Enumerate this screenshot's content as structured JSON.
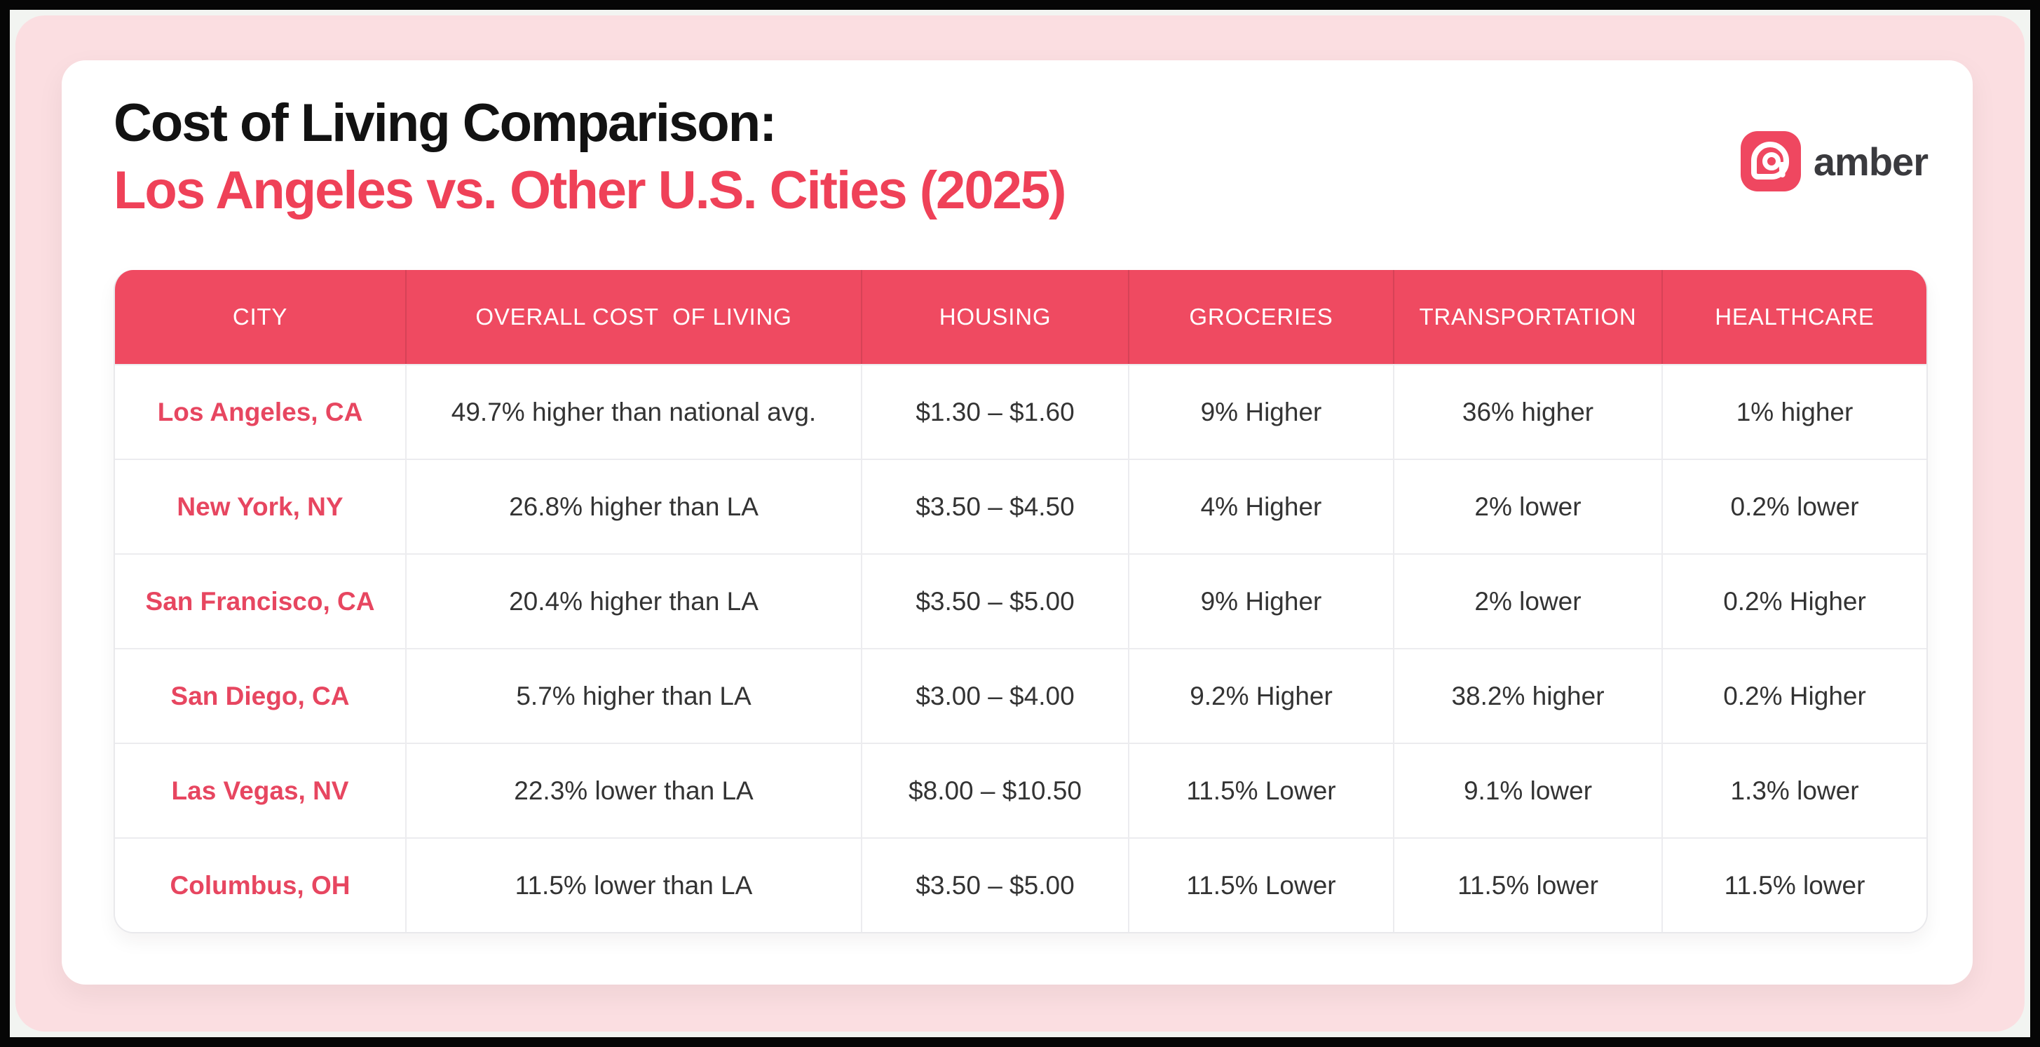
{
  "header": {
    "title_line1": "Cost of Living Comparison:",
    "title_line2": "Los Angeles vs. Other U.S. Cities (2025)"
  },
  "logo": {
    "brand": "amber",
    "icon": "amber-a-icon"
  },
  "colors": {
    "accent": "#EF4158",
    "header_bg": "#EF4A61",
    "city_text": "#E74660",
    "panel_pink": "#FBDEE1",
    "body_text": "#333333",
    "logo_bg": "#EF4760"
  },
  "table": {
    "columns": [
      "CITY",
      "OVERALL COST  OF LIVING",
      "HOUSING",
      "GROCERIES",
      "TRANSPORTATION",
      "HEALTHCARE"
    ],
    "rows": [
      {
        "cells": [
          "Los Angeles, CA",
          "49.7% higher than national avg.",
          "$1.30 – $1.60",
          "9% Higher",
          "36% higher",
          "1% higher"
        ]
      },
      {
        "cells": [
          "New York, NY",
          "26.8% higher than LA",
          "$3.50 – $4.50",
          "4% Higher",
          "2% lower",
          "0.2% lower"
        ]
      },
      {
        "cells": [
          "San Francisco, CA",
          "20.4% higher than LA",
          "$3.50 – $5.00",
          "9% Higher",
          "2% lower",
          "0.2% Higher"
        ]
      },
      {
        "cells": [
          "San Diego, CA",
          "5.7% higher than LA",
          "$3.00 – $4.00",
          "9.2% Higher",
          "38.2% higher",
          "0.2% Higher"
        ]
      },
      {
        "cells": [
          "Las Vegas, NV",
          "22.3% lower than LA",
          "$8.00 – $10.50",
          "11.5% Lower",
          "9.1% lower",
          "1.3% lower"
        ]
      },
      {
        "cells": [
          "Columbus, OH",
          "11.5% lower than LA",
          "$3.50 – $5.00",
          "11.5% Lower",
          "11.5% lower",
          "11.5% lower"
        ]
      }
    ]
  },
  "chart_data": {
    "type": "table",
    "title": "Cost of Living Comparison: Los Angeles vs. Other U.S. Cities (2025)",
    "columns": [
      "CITY",
      "OVERALL COST OF LIVING",
      "HOUSING",
      "GROCERIES",
      "TRANSPORTATION",
      "HEALTHCARE"
    ],
    "rows": [
      [
        "Los Angeles, CA",
        "49.7% higher than national avg.",
        "$1.30 – $1.60",
        "9% Higher",
        "36% higher",
        "1% higher"
      ],
      [
        "New York, NY",
        "26.8% higher than LA",
        "$3.50 – $4.50",
        "4% Higher",
        "2% lower",
        "0.2% lower"
      ],
      [
        "San Francisco, CA",
        "20.4% higher than LA",
        "$3.50 – $5.00",
        "9% Higher",
        "2% lower",
        "0.2% Higher"
      ],
      [
        "San Diego, CA",
        "5.7% higher than LA",
        "$3.00 – $4.00",
        "9.2% Higher",
        "38.2% higher",
        "0.2% Higher"
      ],
      [
        "Las Vegas, NV",
        "22.3% lower than LA",
        "$8.00 – $10.50",
        "11.5% Lower",
        "9.1% lower",
        "1.3% lower"
      ],
      [
        "Columbus, OH",
        "11.5% lower than LA",
        "$3.50 – $5.00",
        "11.5% Lower",
        "11.5% lower",
        "11.5% lower"
      ]
    ]
  }
}
